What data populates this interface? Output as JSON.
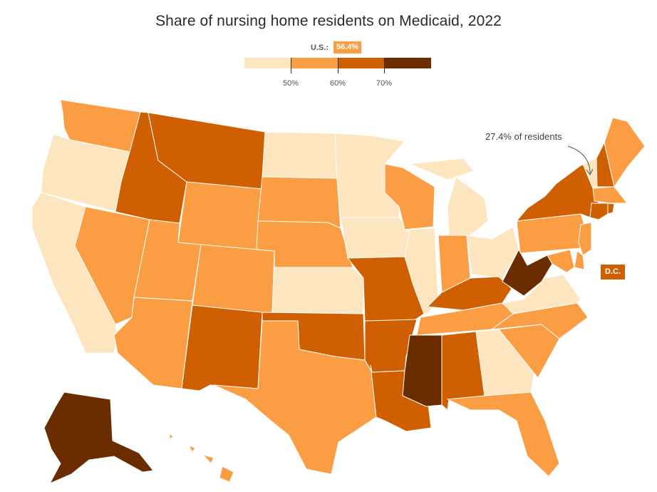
{
  "title": "Share of nursing home residents on Medicaid, 2022",
  "us_summary": {
    "label": "U.S.:",
    "value": "56.4%"
  },
  "legend": {
    "ticks": [
      "50%",
      "60%",
      "70%"
    ],
    "colors": [
      "#fde5bf",
      "#fb9d42",
      "#cf5f00",
      "#6b2d00"
    ]
  },
  "annotation": "27.4% of residents",
  "dc_label": "D.C.",
  "state_colors": {
    "WA": "#fb9d42",
    "OR": "#fde5bf",
    "CA": "#fde5bf",
    "NV": "#fb9d42",
    "ID": "#cf5f00",
    "MT": "#cf5f00",
    "WY": "#fb9d42",
    "UT": "#fb9d42",
    "AZ": "#fb9d42",
    "CO": "#fb9d42",
    "NM": "#cf5f00",
    "ND": "#fde5bf",
    "SD": "#fb9d42",
    "NE": "#fb9d42",
    "KS": "#fde5bf",
    "OK": "#cf5f00",
    "TX": "#fb9d42",
    "MN": "#fde5bf",
    "IA": "#fde5bf",
    "MO": "#cf5f00",
    "AR": "#cf5f00",
    "LA": "#cf5f00",
    "WI": "#fb9d42",
    "IL": "#fde5bf",
    "MI": "#fde5bf",
    "IN": "#fb9d42",
    "OH": "#fde5bf",
    "KY": "#cf5f00",
    "TN": "#fb9d42",
    "MS": "#6b2d00",
    "AL": "#cf5f00",
    "GA": "#fde5bf",
    "FL": "#fb9d42",
    "SC": "#fb9d42",
    "NC": "#fb9d42",
    "VA": "#fde5bf",
    "WV": "#6b2d00",
    "PA": "#fb9d42",
    "NY": "#cf5f00",
    "VT": "#fde5bf",
    "NH": "#cf5f00",
    "ME": "#fb9d42",
    "MA": "#fb9d42",
    "RI": "#cf5f00",
    "CT": "#cf5f00",
    "NJ": "#fb9d42",
    "DE": "#fb9d42",
    "MD": "#fb9d42",
    "AK": "#6b2d00",
    "HI": "#fb9d42"
  }
}
